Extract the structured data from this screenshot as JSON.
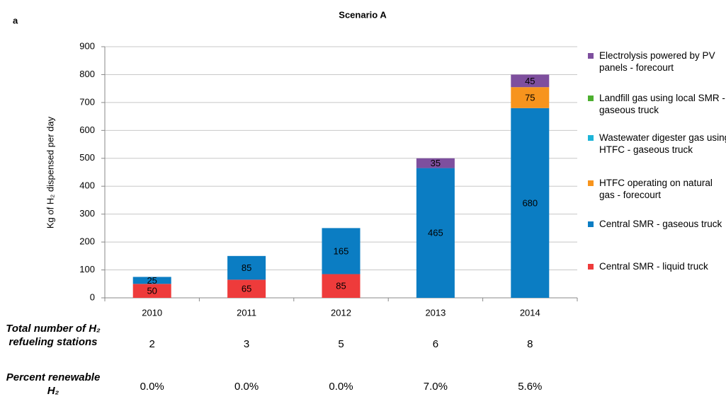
{
  "chart_data": {
    "type": "stacked_bar",
    "panel_label": "a",
    "title": "Scenario A",
    "y_label": "Kg of H₂ dispensed per day",
    "categories": [
      "2010",
      "2011",
      "2012",
      "2013",
      "2014"
    ],
    "series": [
      {
        "name": "Central SMR - liquid truck",
        "color": "#ee3b3b",
        "values": [
          50,
          65,
          85,
          null,
          null
        ]
      },
      {
        "name": "Central SMR - gaseous truck",
        "color": "#0b7dc3",
        "values": [
          25,
          85,
          165,
          465,
          680
        ]
      },
      {
        "name": "HTFC operating on natural gas - forecourt",
        "color": "#f7941d",
        "values": [
          null,
          null,
          null,
          null,
          75
        ]
      },
      {
        "name": "Wastewater digester gas using HTFC - gaseous truck",
        "color": "#1db4d8",
        "values": [
          null,
          null,
          null,
          null,
          null
        ]
      },
      {
        "name": "Landfill gas using local SMR - gaseous truck",
        "color": "#4caf2f",
        "values": [
          null,
          null,
          null,
          null,
          null
        ]
      },
      {
        "name": "Electrolysis powered by PV panels - forecourt",
        "color": "#7e4f9e",
        "values": [
          null,
          null,
          null,
          35,
          45
        ]
      }
    ],
    "ylim": [
      0,
      900
    ],
    "yticks": [
      0,
      100,
      200,
      300,
      400,
      500,
      600,
      700,
      800,
      900
    ],
    "grid": true,
    "table": [
      {
        "label": "Total number of H₂ refueling stations",
        "values": [
          2,
          3,
          5,
          6,
          8
        ]
      },
      {
        "label": "Percent renewable H₂",
        "values": [
          "0.0%",
          "0.0%",
          "0.0%",
          "7.0%",
          "5.6%"
        ]
      }
    ]
  }
}
